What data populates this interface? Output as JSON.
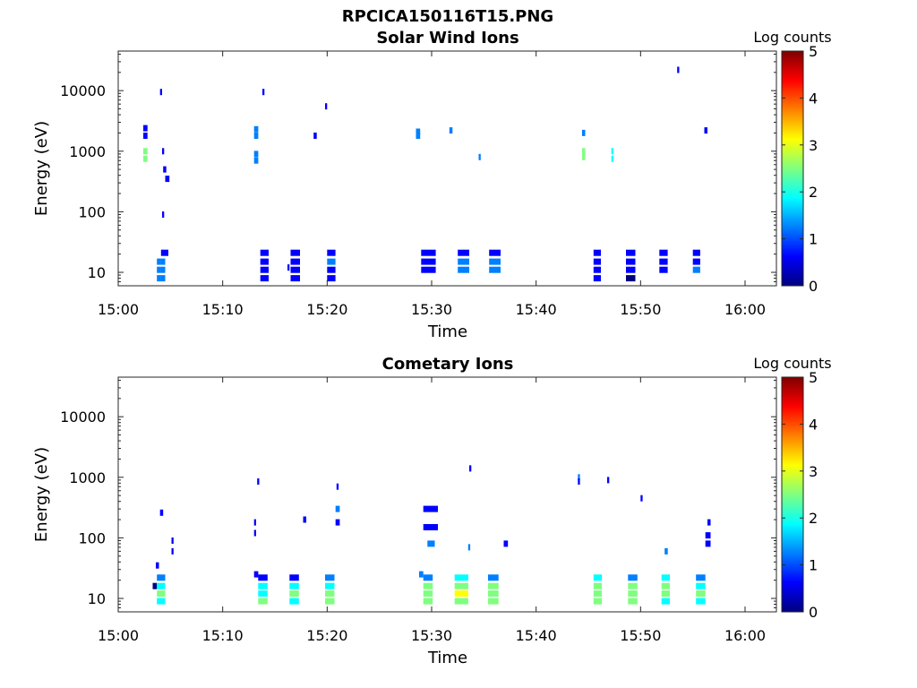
{
  "figure_title": "RPCICA150116T15.PNG",
  "colormap": [
    "#00007f",
    "#0000ff",
    "#007fff",
    "#00ffff",
    "#7fff7f",
    "#ffff00",
    "#ff7f00",
    "#ff0000",
    "#7f0000"
  ],
  "chart_data": [
    {
      "type": "heatmap",
      "title": "Solar Wind Ions",
      "xlabel": "Time",
      "ylabel": "Energy (eV)",
      "x_ticks": [
        "15:00",
        "15:10",
        "15:20",
        "15:30",
        "15:40",
        "15:50",
        "16:00"
      ],
      "y_ticks": [
        "10",
        "100",
        "1000",
        "10000"
      ],
      "ylim": [
        6,
        45000
      ],
      "y_scale": "log",
      "xlim_minutes": [
        0,
        63
      ],
      "colorbar": {
        "label": "Log counts",
        "ticks": [
          "0",
          "1",
          "2",
          "3",
          "4",
          "5"
        ],
        "range": [
          0,
          5
        ]
      },
      "cells_format": "[minute_start, minute_end, energy_eV, log_counts]",
      "cells": [
        [
          2.4,
          2.8,
          2400,
          0.8
        ],
        [
          2.4,
          2.8,
          1800,
          0.8
        ],
        [
          2.4,
          2.8,
          1000,
          2.3
        ],
        [
          2.4,
          2.8,
          750,
          2.2
        ],
        [
          3.7,
          4.1,
          15,
          1.5
        ],
        [
          3.7,
          4.1,
          11,
          1.2
        ],
        [
          3.7,
          4.1,
          8,
          1.3
        ],
        [
          4.1,
          4.5,
          21,
          0.6
        ],
        [
          4.1,
          4.5,
          15,
          1.3
        ],
        [
          4.1,
          4.5,
          11,
          1.5
        ],
        [
          4.1,
          4.5,
          8,
          1.5
        ],
        [
          4.5,
          4.8,
          21,
          0.6
        ],
        [
          4.0,
          4.2,
          9500,
          0.5
        ],
        [
          4.2,
          4.4,
          1000,
          0.6
        ],
        [
          4.3,
          4.6,
          500,
          0.5
        ],
        [
          4.5,
          4.9,
          350,
          0.5
        ],
        [
          4.2,
          4.4,
          90,
          0.5
        ],
        [
          13.0,
          13.4,
          2300,
          1.4
        ],
        [
          13.0,
          13.4,
          1800,
          1.3
        ],
        [
          13.0,
          13.4,
          900,
          1.5
        ],
        [
          13.0,
          13.4,
          700,
          1.2
        ],
        [
          13.6,
          14.4,
          21,
          0.7
        ],
        [
          13.6,
          14.4,
          15,
          0.8
        ],
        [
          13.6,
          14.4,
          11,
          0.6
        ],
        [
          13.6,
          14.4,
          8,
          0.7
        ],
        [
          13.8,
          14.0,
          9500,
          0.5
        ],
        [
          16.2,
          16.4,
          12,
          0.6
        ],
        [
          16.5,
          17.4,
          21,
          0.6
        ],
        [
          16.5,
          17.4,
          15,
          0.6
        ],
        [
          16.5,
          17.4,
          11,
          0.5
        ],
        [
          16.5,
          17.4,
          8,
          0.6
        ],
        [
          18.7,
          19.0,
          1800,
          0.6
        ],
        [
          19.8,
          20.0,
          5500,
          0.5
        ],
        [
          20.0,
          20.8,
          21,
          0.7
        ],
        [
          20.0,
          20.8,
          15,
          1.1
        ],
        [
          20.0,
          20.8,
          11,
          0.9
        ],
        [
          20.0,
          20.8,
          8,
          0.7
        ],
        [
          28.5,
          28.9,
          2100,
          1.5
        ],
        [
          28.5,
          28.9,
          1800,
          1.3
        ],
        [
          29.0,
          30.4,
          21,
          0.6
        ],
        [
          29.0,
          30.4,
          15,
          0.6
        ],
        [
          29.0,
          30.4,
          11,
          0.6
        ],
        [
          31.7,
          32.0,
          2200,
          1.4
        ],
        [
          32.5,
          33.6,
          21,
          0.6
        ],
        [
          32.5,
          33.6,
          15,
          1.0
        ],
        [
          32.5,
          33.6,
          11,
          1.4
        ],
        [
          34.5,
          34.7,
          800,
          1.5
        ],
        [
          35.5,
          36.6,
          21,
          0.7
        ],
        [
          35.5,
          36.6,
          15,
          1.1
        ],
        [
          35.5,
          36.6,
          11,
          1.5
        ],
        [
          44.4,
          44.7,
          2000,
          1.2
        ],
        [
          44.4,
          44.7,
          1000,
          2.2
        ],
        [
          44.4,
          44.7,
          800,
          2.3
        ],
        [
          47.2,
          47.4,
          1000,
          1.8
        ],
        [
          47.2,
          47.4,
          750,
          2.0
        ],
        [
          45.5,
          46.2,
          21,
          0.5
        ],
        [
          45.5,
          46.2,
          15,
          0.5
        ],
        [
          45.5,
          46.2,
          11,
          0.5
        ],
        [
          45.5,
          46.2,
          8,
          0.5
        ],
        [
          48.6,
          49.5,
          21,
          0.6
        ],
        [
          48.6,
          49.5,
          15,
          0.6
        ],
        [
          48.6,
          49.5,
          11,
          0.6
        ],
        [
          48.6,
          49.5,
          8,
          0.2
        ],
        [
          51.8,
          52.6,
          21,
          0.6
        ],
        [
          51.8,
          52.6,
          15,
          0.6
        ],
        [
          51.8,
          52.6,
          11,
          0.5
        ],
        [
          53.5,
          53.7,
          22000,
          0.5
        ],
        [
          55.0,
          55.7,
          21,
          0.6
        ],
        [
          55.0,
          55.7,
          15,
          0.8
        ],
        [
          55.0,
          55.7,
          11,
          1.1
        ],
        [
          56.1,
          56.4,
          2200,
          0.6
        ]
      ]
    },
    {
      "type": "heatmap",
      "title": "Cometary Ions",
      "xlabel": "Time",
      "ylabel": "Energy (eV)",
      "x_ticks": [
        "15:00",
        "15:10",
        "15:20",
        "15:30",
        "15:40",
        "15:50",
        "16:00"
      ],
      "y_ticks": [
        "10",
        "100",
        "1000",
        "10000"
      ],
      "ylim": [
        6,
        45000
      ],
      "y_scale": "log",
      "xlim_minutes": [
        0,
        63
      ],
      "colorbar": {
        "label": "Log counts",
        "ticks": [
          "0",
          "1",
          "2",
          "3",
          "4",
          "5"
        ],
        "range": [
          0,
          5
        ]
      },
      "cells_format": "[minute_start, minute_end, energy_eV, log_counts]",
      "cells": [
        [
          3.3,
          3.7,
          16,
          0.2
        ],
        [
          3.7,
          4.5,
          22,
          1.5
        ],
        [
          3.7,
          4.5,
          16,
          2.1
        ],
        [
          3.7,
          4.5,
          12,
          2.2
        ],
        [
          3.7,
          4.5,
          9,
          2.1
        ],
        [
          3.6,
          3.9,
          35,
          0.6
        ],
        [
          4.0,
          4.3,
          260,
          0.6
        ],
        [
          5.1,
          5.3,
          90,
          0.6
        ],
        [
          5.1,
          5.3,
          60,
          0.7
        ],
        [
          13.0,
          13.4,
          25,
          0.8
        ],
        [
          13.4,
          14.3,
          22,
          0.9
        ],
        [
          13.4,
          14.3,
          16,
          1.8
        ],
        [
          13.4,
          14.3,
          12,
          2.1
        ],
        [
          13.4,
          14.3,
          9,
          2.2
        ],
        [
          13.0,
          13.2,
          180,
          0.6
        ],
        [
          13.0,
          13.2,
          120,
          0.6
        ],
        [
          13.3,
          13.5,
          850,
          0.5
        ],
        [
          16.4,
          17.3,
          22,
          0.9
        ],
        [
          16.4,
          17.3,
          16,
          1.9
        ],
        [
          16.4,
          17.3,
          12,
          2.3
        ],
        [
          16.4,
          17.3,
          9,
          1.7
        ],
        [
          17.7,
          18.0,
          200,
          0.6
        ],
        [
          19.8,
          20.7,
          22,
          1.0
        ],
        [
          19.8,
          20.7,
          16,
          2.0
        ],
        [
          19.8,
          20.7,
          12,
          2.5
        ],
        [
          19.8,
          20.7,
          9,
          2.2
        ],
        [
          20.8,
          21.2,
          300,
          1.0
        ],
        [
          20.8,
          21.2,
          180,
          0.8
        ],
        [
          20.9,
          21.1,
          700,
          0.5
        ],
        [
          28.8,
          29.2,
          25,
          1.3
        ],
        [
          29.2,
          30.1,
          22,
          1.4
        ],
        [
          29.2,
          30.1,
          16,
          2.6
        ],
        [
          29.2,
          30.1,
          12,
          2.8
        ],
        [
          29.2,
          30.1,
          9,
          2.4
        ],
        [
          29.2,
          30.6,
          300,
          0.9
        ],
        [
          29.2,
          30.6,
          150,
          0.7
        ],
        [
          29.6,
          30.3,
          80,
          1.0
        ],
        [
          32.2,
          33.5,
          22,
          1.6
        ],
        [
          32.2,
          33.5,
          16,
          2.6
        ],
        [
          32.2,
          33.5,
          12,
          3.0
        ],
        [
          32.2,
          33.5,
          9,
          2.4
        ],
        [
          33.5,
          33.7,
          70,
          1.0
        ],
        [
          33.6,
          33.8,
          1400,
          0.5
        ],
        [
          35.4,
          36.4,
          22,
          1.1
        ],
        [
          35.4,
          36.4,
          16,
          2.5
        ],
        [
          35.4,
          36.4,
          12,
          2.4
        ],
        [
          35.4,
          36.4,
          9,
          2.2
        ],
        [
          36.9,
          37.3,
          80,
          0.8
        ],
        [
          44.0,
          44.2,
          1000,
          1.1
        ],
        [
          44.0,
          44.2,
          850,
          0.9
        ],
        [
          45.5,
          46.3,
          22,
          1.6
        ],
        [
          45.5,
          46.3,
          16,
          2.2
        ],
        [
          45.5,
          46.3,
          12,
          2.3
        ],
        [
          45.5,
          46.3,
          9,
          2.2
        ],
        [
          46.8,
          47.0,
          900,
          0.5
        ],
        [
          48.8,
          49.7,
          22,
          1.5
        ],
        [
          48.8,
          49.7,
          16,
          2.3
        ],
        [
          48.8,
          49.7,
          12,
          2.5
        ],
        [
          48.8,
          49.7,
          9,
          2.2
        ],
        [
          50.0,
          50.2,
          450,
          0.6
        ],
        [
          52.0,
          52.8,
          22,
          1.6
        ],
        [
          52.0,
          52.8,
          16,
          2.3
        ],
        [
          52.0,
          52.8,
          12,
          2.5
        ],
        [
          52.0,
          52.8,
          9,
          2.0
        ],
        [
          52.3,
          52.6,
          60,
          1.1
        ],
        [
          55.3,
          56.2,
          22,
          1.3
        ],
        [
          55.3,
          56.2,
          16,
          2.0
        ],
        [
          55.3,
          56.2,
          12,
          2.2
        ],
        [
          55.3,
          56.2,
          9,
          2.0
        ],
        [
          56.2,
          56.7,
          110,
          0.6
        ],
        [
          56.2,
          56.7,
          80,
          0.4
        ],
        [
          56.4,
          56.7,
          180,
          0.7
        ]
      ]
    }
  ]
}
